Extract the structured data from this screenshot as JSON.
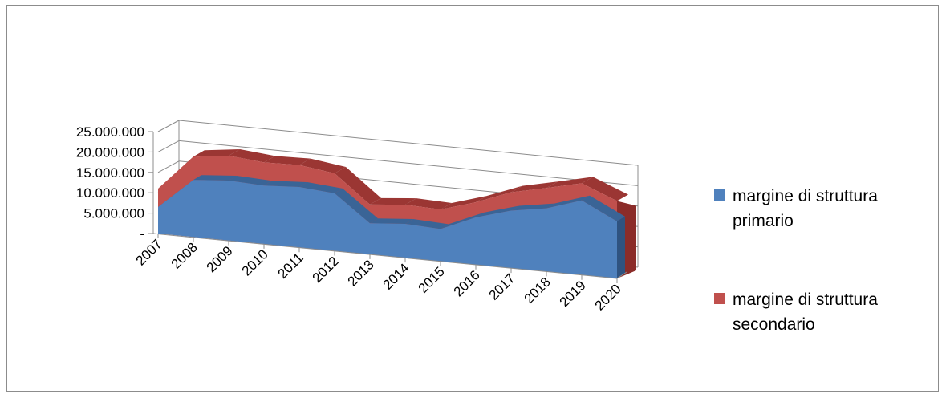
{
  "chart_data": {
    "type": "area",
    "categories": [
      "2007",
      "2008",
      "2009",
      "2010",
      "2011",
      "2012",
      "2013",
      "2014",
      "2015",
      "2016",
      "2017",
      "2018",
      "2019",
      "2020"
    ],
    "series": [
      {
        "name": "margine di struttura primario",
        "color": "#4f81bd",
        "values": [
          6500000,
          14000000,
          14700000,
          14300000,
          14800000,
          14100000,
          7600000,
          8300000,
          7900000,
          11600000,
          14100000,
          15500000,
          18300000,
          14000000
        ]
      },
      {
        "name": "margine di struttura secondario",
        "color": "#c0504d",
        "values": [
          11000000,
          19700000,
          20800000,
          20000000,
          20200000,
          19000000,
          12200000,
          13000000,
          12700000,
          15300000,
          18600000,
          20500000,
          22500000,
          19000000
        ]
      }
    ],
    "y_tick_labels": [
      "-",
      "5.000.000",
      "10.000.000",
      "15.000.000",
      "20.000.000",
      "25.000.000"
    ],
    "ylim": [
      0,
      25000000
    ],
    "xlabel": "",
    "ylabel": "",
    "title": "",
    "legend_position": "right",
    "grid": true,
    "style": "3d-area"
  }
}
